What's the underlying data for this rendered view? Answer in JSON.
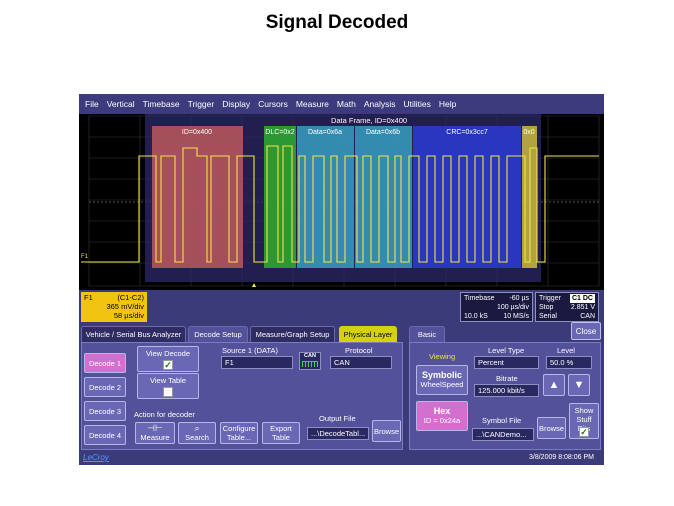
{
  "slide": {
    "title": "Signal Decoded"
  },
  "menu": [
    "File",
    "Vertical",
    "Timebase",
    "Trigger",
    "Display",
    "Cursors",
    "Measure",
    "Math",
    "Analysis",
    "Utilities",
    "Help"
  ],
  "decode": {
    "frame_label": "Data Frame, ID=0x400",
    "fields": [
      {
        "label": "ID=0x400",
        "color": "#e06666"
      },
      {
        "label": "DLC=0x2",
        "color": "#35c435"
      },
      {
        "label": "Data=0x6a",
        "color": "#3aa6c8"
      },
      {
        "label": "Data=0x6b",
        "color": "#3aa6c8"
      },
      {
        "label": "CRC=0x3cc7",
        "color": "#2a3bd4"
      },
      {
        "label": "0x0",
        "color": "#d6c43a"
      }
    ],
    "trace_label": "F1"
  },
  "readouts": {
    "f1": {
      "name": "F1",
      "source": "(C1-C2)",
      "vdiv": "365 mV/div",
      "tdiv": "58 µs/div"
    },
    "timebase": {
      "label": "Timebase",
      "delay": "-60 µs",
      "tdiv": "100 µs/div",
      "samples": "10.0 kS",
      "rate": "10 MS/s"
    },
    "trigger": {
      "label": "Trigger",
      "chip": "C1 DC",
      "mode": "Stop",
      "level": "2.851 V",
      "type": "Serial",
      "proto": "CAN"
    }
  },
  "tabs": {
    "vehicle": "Vehicle / Serial Bus Analyzer",
    "decode_setup": "Decode Setup",
    "measure_graph": "Measure/Graph Setup",
    "physical": "Physical Layer",
    "basic": "Basic",
    "close": "Close"
  },
  "left": {
    "decodes": [
      "Decode 1",
      "Decode 2",
      "Decode 3",
      "Decode 4"
    ],
    "view_decode": "View Decode",
    "view_table": "View Table",
    "source_label": "Source 1 (DATA)",
    "source_value": "F1",
    "protocol_label": "Protocol",
    "protocol_value": "CAN",
    "can_icon_text": "CAN",
    "action_label": "Action for decoder",
    "measure": "Measure",
    "search": "Search",
    "configure": "Configure Table...",
    "export": "Export Table",
    "output_label": "Output File",
    "output_value": "...\\DecodeTabl...",
    "browse": "Browse"
  },
  "right": {
    "viewing": "Viewing",
    "symbolic": "Symbolic",
    "wheelspeed": "WheelSpeed",
    "hex": "Hex",
    "hex_id": "ID = 0x24a",
    "level_type_label": "Level Type",
    "level_type_value": "Percent",
    "level_label": "Level",
    "level_value": "50.0 %",
    "bitrate_label": "Bitrate",
    "bitrate_value": "125.000 kbit/s",
    "symbol_file_label": "Symbol File",
    "symbol_file_value": "...\\CANDemo...",
    "browse": "Browse",
    "show_stuff": "Show Stuff Bits"
  },
  "status": {
    "logo": "LeCroy",
    "datetime": "3/8/2009 8:08:06 PM"
  }
}
